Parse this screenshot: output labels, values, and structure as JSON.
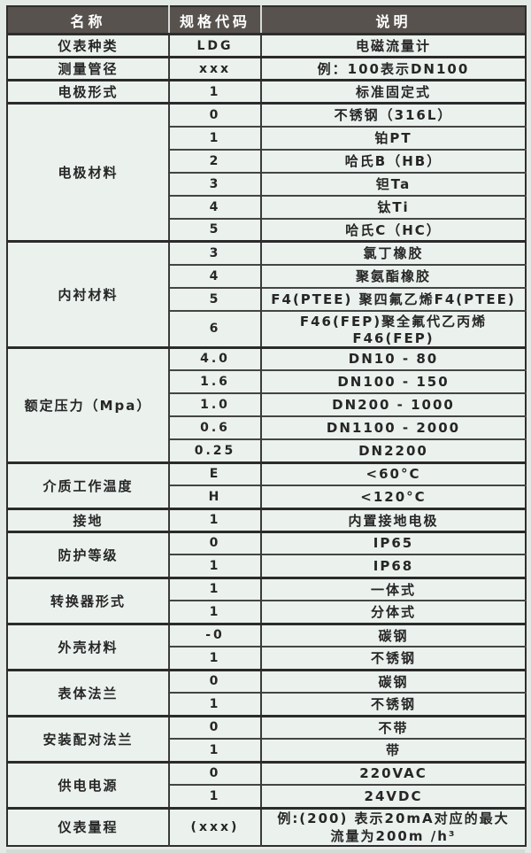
{
  "colors": {
    "header_bg": "#57524e",
    "header_text": "#ffffff",
    "body_bg": "#ebf1ec",
    "border_dark": "#2e2e2e",
    "text": "#262626"
  },
  "table": {
    "headers": [
      "名称",
      "规格代码",
      "说明"
    ],
    "groups": [
      {
        "name": "仪表种类",
        "rows": [
          {
            "code": "LDG",
            "desc": "电磁流量计"
          }
        ]
      },
      {
        "name": "测量管径",
        "rows": [
          {
            "code": "xxx",
            "desc": "例：100表示DN100"
          }
        ]
      },
      {
        "name": "电极形式",
        "rows": [
          {
            "code": "1",
            "desc": "标准固定式"
          }
        ]
      },
      {
        "name": "电极材料",
        "rows": [
          {
            "code": "0",
            "desc": "不锈钢（316L）"
          },
          {
            "code": "1",
            "desc": "铂PT"
          },
          {
            "code": "2",
            "desc": "哈氏B（HB）"
          },
          {
            "code": "3",
            "desc": "钽Ta"
          },
          {
            "code": "4",
            "desc": "钛Ti"
          },
          {
            "code": "5",
            "desc": "哈氏C（HC）"
          }
        ]
      },
      {
        "name": "内衬材料",
        "rows": [
          {
            "code": "3",
            "desc": "氯丁橡胶"
          },
          {
            "code": "4",
            "desc": "聚氨酯橡胶"
          },
          {
            "code": "5",
            "desc": "F4(PTEE) 聚四氟乙烯F4(PTEE)"
          },
          {
            "code": "6",
            "desc": "F46(FEP)聚全氟代乙丙烯F46(FEP)"
          }
        ]
      },
      {
        "name": "额定压力（Mpa）",
        "rows": [
          {
            "code": "4.0",
            "desc": "DN10 - 80"
          },
          {
            "code": "1.6",
            "desc": "DN100 - 150"
          },
          {
            "code": "1.0",
            "desc": "DN200 - 1000"
          },
          {
            "code": "0.6",
            "desc": "DN1100 - 2000"
          },
          {
            "code": "0.25",
            "desc": "DN2200"
          }
        ]
      },
      {
        "name": "介质工作温度",
        "rows": [
          {
            "code": "E",
            "desc": "<60°C"
          },
          {
            "code": "H",
            "desc": "<120°C"
          }
        ]
      },
      {
        "name": "接地",
        "rows": [
          {
            "code": "1",
            "desc": "内置接地电极"
          }
        ]
      },
      {
        "name": "防护等级",
        "rows": [
          {
            "code": "0",
            "desc": "IP65"
          },
          {
            "code": "1",
            "desc": "IP68"
          }
        ]
      },
      {
        "name": "转换器形式",
        "rows": [
          {
            "code": "1",
            "desc": "一体式"
          },
          {
            "code": "1",
            "desc": "分体式"
          }
        ]
      },
      {
        "name": "外壳材料",
        "rows": [
          {
            "code": "-0",
            "desc": "碳钢"
          },
          {
            "code": "1",
            "desc": "不锈钢"
          }
        ]
      },
      {
        "name": "表体法兰",
        "rows": [
          {
            "code": "0",
            "desc": "碳钢"
          },
          {
            "code": "1",
            "desc": "不锈钢"
          }
        ]
      },
      {
        "name": "安装配对法兰",
        "rows": [
          {
            "code": "0",
            "desc": "不带"
          },
          {
            "code": "1",
            "desc": "带"
          }
        ]
      },
      {
        "name": "供电电源",
        "rows": [
          {
            "code": "0",
            "desc": "220VAC"
          },
          {
            "code": "1",
            "desc": "24VDC"
          }
        ]
      },
      {
        "name": "仪表量程",
        "rows": [
          {
            "code": "(xxx)",
            "tall": true,
            "desc_lines": [
              "例:(200) 表示20mA对应的最大",
              "流量为200m /h³"
            ]
          }
        ]
      }
    ]
  }
}
